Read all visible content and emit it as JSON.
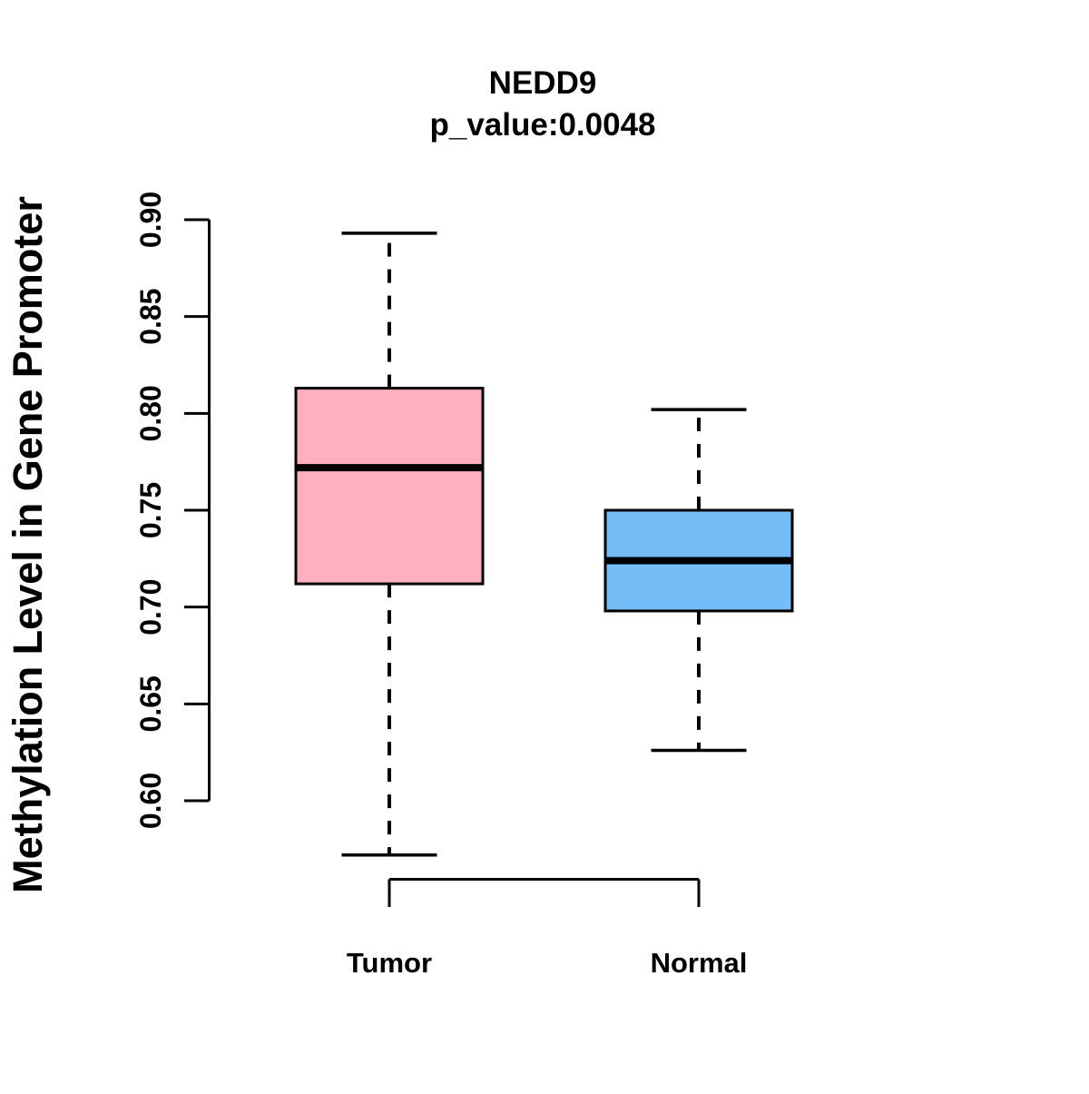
{
  "title": {
    "text": "NEDD9",
    "subtitle": "p_value:0.0048"
  },
  "chart_data": {
    "type": "boxplot",
    "title": "NEDD9",
    "subtitle": "p_value:0.0048",
    "p_value": "0.0048",
    "ylabel": "Methylation Level in Gene Promoter",
    "xlabel": "",
    "ylim": [
      0.6,
      0.9
    ],
    "y_ticks": [
      "0.60",
      "0.65",
      "0.70",
      "0.75",
      "0.80",
      "0.85",
      "0.90"
    ],
    "grid": false,
    "legend_position": "none",
    "categories": [
      "Tumor",
      "Normal"
    ],
    "series": [
      {
        "name": "Tumor",
        "fill_color": "#FFB0C0",
        "whisker_low": 0.572,
        "q1": 0.712,
        "median": 0.772,
        "q3": 0.813,
        "whisker_high": 0.893
      },
      {
        "name": "Normal",
        "fill_color": "#74BDF7",
        "whisker_low": 0.626,
        "q1": 0.698,
        "median": 0.724,
        "q3": 0.75,
        "whisker_high": 0.802
      }
    ],
    "colors": {
      "stroke": "#000000",
      "background": "#ffffff"
    }
  }
}
